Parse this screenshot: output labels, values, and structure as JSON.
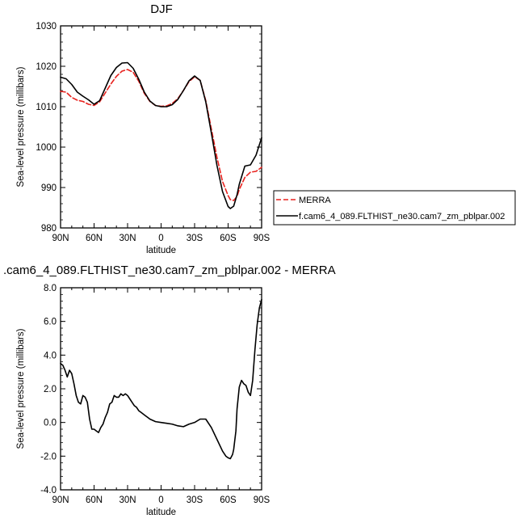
{
  "chart_data": [
    {
      "type": "line",
      "title": "DJF",
      "xlabel": "latitude",
      "ylabel": "Sea-level pressure (millibars)",
      "x_tick_labels": [
        "90N",
        "60N",
        "30N",
        "0",
        "30S",
        "60S",
        "90S"
      ],
      "x_tick_values": [
        90,
        60,
        30,
        0,
        -30,
        -60,
        -90
      ],
      "y_tick_labels": [
        "980",
        "990",
        "1000",
        "1010",
        "1020",
        "1030"
      ],
      "y_tick_values": [
        980,
        990,
        1000,
        1010,
        1020,
        1030
      ],
      "xlim": [
        90,
        -90
      ],
      "ylim": [
        980,
        1030
      ],
      "legend_position": "right",
      "series": [
        {
          "name": "MERRA",
          "color": "#e8221e",
          "dash": "dashed",
          "x": [
            90,
            85,
            80,
            75,
            70,
            65,
            60,
            55,
            50,
            45,
            40,
            35,
            30,
            25,
            20,
            15,
            10,
            5,
            0,
            -5,
            -10,
            -15,
            -20,
            -25,
            -30,
            -35,
            -40,
            -45,
            -50,
            -55,
            -60,
            -62,
            -65,
            -68,
            -70,
            -75,
            -80,
            -85,
            -90
          ],
          "y": [
            1013.8,
            1013.6,
            1012.3,
            1011.6,
            1011.3,
            1010.6,
            1010.3,
            1011.2,
            1013.4,
            1015.6,
            1017.5,
            1018.8,
            1019.2,
            1018.5,
            1016.3,
            1013.3,
            1011.3,
            1010.3,
            1010.1,
            1010.2,
            1010.8,
            1012.0,
            1014.0,
            1016.2,
            1017.4,
            1016.5,
            1011.5,
            1004.5,
            997.5,
            991.5,
            988.0,
            987.0,
            986.8,
            987.8,
            989.5,
            992.5,
            993.8,
            994.0,
            995.0
          ]
        },
        {
          "name": "f.cam6_4_089.FLTHIST_ne30.cam7_zm_pblpar.002",
          "color": "#000000",
          "dash": "solid",
          "x": [
            90,
            85,
            80,
            75,
            70,
            65,
            60,
            55,
            50,
            45,
            40,
            35,
            30,
            25,
            20,
            15,
            10,
            5,
            0,
            -5,
            -10,
            -15,
            -20,
            -25,
            -30,
            -35,
            -40,
            -45,
            -50,
            -55,
            -60,
            -62,
            -65,
            -68,
            -70,
            -75,
            -80,
            -85,
            -90
          ],
          "y": [
            1017.3,
            1016.9,
            1015.5,
            1013.6,
            1012.6,
            1011.7,
            1010.6,
            1011.5,
            1014.6,
            1017.7,
            1019.7,
            1020.8,
            1020.9,
            1019.5,
            1016.8,
            1013.6,
            1011.4,
            1010.3,
            1010.0,
            1010.0,
            1010.5,
            1011.8,
            1014.0,
            1016.4,
            1017.6,
            1016.5,
            1011.2,
            1003.5,
            995.5,
            989.0,
            985.3,
            984.8,
            985.4,
            988.2,
            990.8,
            995.3,
            995.6,
            998.0,
            1002.3
          ]
        }
      ]
    },
    {
      "type": "line",
      "title": ".cam6_4_089.FLTHIST_ne30.cam7_zm_pblpar.002 - MERRA",
      "xlabel": "latitude",
      "ylabel": "Sea-level pressure (millibars)",
      "x_tick_labels": [
        "90N",
        "60N",
        "30N",
        "0",
        "30S",
        "60S",
        "90S"
      ],
      "x_tick_values": [
        90,
        60,
        30,
        0,
        -30,
        -60,
        -90
      ],
      "y_tick_labels": [
        "-4.0",
        "-2.0",
        "0.0",
        "2.0",
        "4.0",
        "6.0",
        "8.0"
      ],
      "y_tick_values": [
        -4,
        -2,
        0,
        2,
        4,
        6,
        8
      ],
      "xlim": [
        90,
        -90
      ],
      "ylim": [
        -4,
        8
      ],
      "series": [
        {
          "color": "#000000",
          "dash": "solid",
          "x": [
            90,
            88,
            86,
            84,
            82,
            80,
            78,
            76,
            74,
            72,
            70,
            68,
            66,
            64,
            62,
            60,
            58,
            56,
            54,
            52,
            50,
            48,
            46,
            44,
            42,
            40,
            38,
            36,
            34,
            32,
            30,
            28,
            26,
            24,
            22,
            20,
            18,
            16,
            14,
            12,
            10,
            5,
            0,
            -5,
            -10,
            -15,
            -20,
            -25,
            -30,
            -35,
            -40,
            -45,
            -50,
            -55,
            -58,
            -60,
            -62,
            -64,
            -65,
            -67,
            -68,
            -70,
            -72,
            -74,
            -76,
            -78,
            -80,
            -82,
            -84,
            -86,
            -88,
            -90
          ],
          "y": [
            3.5,
            3.4,
            3.1,
            2.7,
            3.1,
            2.9,
            2.3,
            1.6,
            1.2,
            1.1,
            1.6,
            1.5,
            1.2,
            0.2,
            -0.4,
            -0.4,
            -0.5,
            -0.6,
            -0.3,
            -0.1,
            0.3,
            0.6,
            1.1,
            1.2,
            1.6,
            1.5,
            1.5,
            1.7,
            1.6,
            1.7,
            1.6,
            1.4,
            1.2,
            1.0,
            0.9,
            0.7,
            0.6,
            0.5,
            0.4,
            0.3,
            0.2,
            0.05,
            0.0,
            -0.05,
            -0.1,
            -0.2,
            -0.25,
            -0.1,
            0.0,
            0.2,
            0.2,
            -0.3,
            -1.0,
            -1.7,
            -2.0,
            -2.1,
            -2.15,
            -1.9,
            -1.6,
            -0.5,
            0.8,
            2.1,
            2.5,
            2.3,
            2.2,
            1.8,
            1.6,
            2.5,
            4.3,
            5.8,
            6.8,
            7.3
          ]
        }
      ]
    }
  ]
}
